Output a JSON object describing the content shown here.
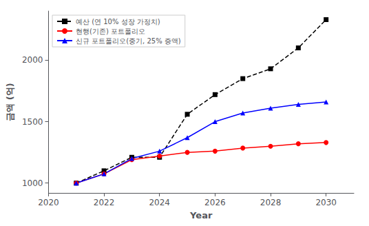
{
  "chart_data": {
    "type": "line",
    "x": [
      2021,
      2022,
      2023,
      2024,
      2025,
      2026,
      2027,
      2028,
      2029,
      2030
    ],
    "series": [
      {
        "name": "예산 (연 10% 성장 가정치)",
        "color": "black",
        "marker": "square",
        "line_style": "dashed",
        "values": [
          1000,
          1100,
          1210,
          1210,
          1560,
          1720,
          1850,
          1930,
          2100,
          2330
        ]
      },
      {
        "name": "현행(기존) 포트폴리오",
        "color": "red",
        "marker": "circle",
        "line_style": "solid",
        "values": [
          1000,
          1075,
          1190,
          1220,
          1250,
          1260,
          1285,
          1300,
          1320,
          1330
        ]
      },
      {
        "name": "신규 포트폴리오(중기, 25% 증액)",
        "color": "blue",
        "marker": "triangle",
        "line_style": "solid",
        "values": [
          1000,
          1075,
          1200,
          1260,
          1370,
          1500,
          1570,
          1610,
          1640,
          1660
        ]
      }
    ],
    "xlabel": "Year",
    "ylabel": "금액 (억)",
    "xlim": [
      2020,
      2031
    ],
    "xticks": [
      2020,
      2022,
      2024,
      2026,
      2028,
      2030
    ],
    "ylim": [
      920,
      2400
    ],
    "yticks": [
      1000,
      1500,
      2000
    ],
    "grid": false,
    "legend": "upper left"
  }
}
